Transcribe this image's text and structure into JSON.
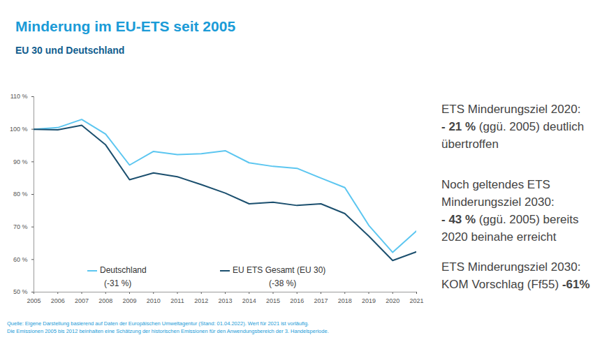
{
  "chart_data": {
    "type": "line",
    "title": "Minderung im EU-ETS seit 2005",
    "subtitle": "EU 30 und Deutschland",
    "x": [
      2005,
      2006,
      2007,
      2008,
      2009,
      2010,
      2011,
      2012,
      2013,
      2014,
      2015,
      2016,
      2017,
      2018,
      2019,
      2020,
      2021
    ],
    "series": [
      {
        "name": "Deutschland",
        "color": "#5cc6f0",
        "values": [
          100,
          100.5,
          103,
          98.5,
          89,
          93.2,
          92.2,
          92.5,
          93.4,
          89.7,
          88.6,
          88,
          85,
          82.1,
          70.5,
          62.2,
          68.8
        ]
      },
      {
        "name": "EU ETS Gesamt (EU 30)",
        "color": "#1b4f6e",
        "values": [
          100,
          99.8,
          101.2,
          95.2,
          84.5,
          86.6,
          85.4,
          83,
          80.4,
          77.1,
          77.6,
          76.6,
          77.1,
          74.1,
          67.2,
          59.7,
          62.4
        ]
      }
    ],
    "annotations": [
      "(-31 %)",
      "(-38 %)"
    ],
    "xlim": [
      2005,
      2021
    ],
    "xticks": [
      2005,
      2006,
      2007,
      2008,
      2009,
      2010,
      2011,
      2012,
      2013,
      2014,
      2015,
      2016,
      2017,
      2018,
      2019,
      2020,
      2021
    ],
    "ylim": [
      50,
      110
    ],
    "yticks": [
      {
        "value": 50,
        "label": "50 %"
      },
      {
        "value": 60,
        "label": "60 %"
      },
      {
        "value": 70,
        "label": "70 %"
      },
      {
        "value": 80,
        "label": "80 %"
      },
      {
        "value": 90,
        "label": "90 %"
      },
      {
        "value": 100,
        "label": "100 %"
      },
      {
        "value": 110,
        "label": "110 %"
      }
    ],
    "grid": false,
    "legend": "lower left",
    "side_notes": [
      [
        [
          {
            "text": "ETS Minderungsziel 2020:"
          }
        ],
        [
          {
            "text": "- 21 %",
            "bold": true
          },
          {
            "text": " (ggü. 2005) deutlich"
          }
        ],
        [
          {
            "text": "übertroffen"
          }
        ]
      ],
      [
        [
          {
            "text": "Noch geltendes ETS"
          }
        ],
        [
          {
            "text": "Minderungsziel 2030:"
          }
        ],
        [
          {
            "text": "- 43 %",
            "bold": true
          },
          {
            "text": " (ggü. 2005) bereits"
          }
        ],
        [
          {
            "text": "2020 beinahe erreicht"
          }
        ]
      ],
      [
        [
          {
            "text": "ETS Minderungsziel 2030:"
          }
        ],
        [
          {
            "text": "KOM Vorschlag (Ff55) "
          },
          {
            "text": "-61%",
            "bold": true
          }
        ]
      ]
    ],
    "source": [
      "Quelle: Eigene Darstellung basierend auf Daten der Europäischen Umweltagentur (Stand: 01.04.2022). Wert für 2021 ist vorläufig.",
      "Die Emissionen 2005 bis 2012 beinhalten eine Schätzung der historischen Emissionen für den Anwendungsbereich der 3. Handelsperiode."
    ]
  }
}
